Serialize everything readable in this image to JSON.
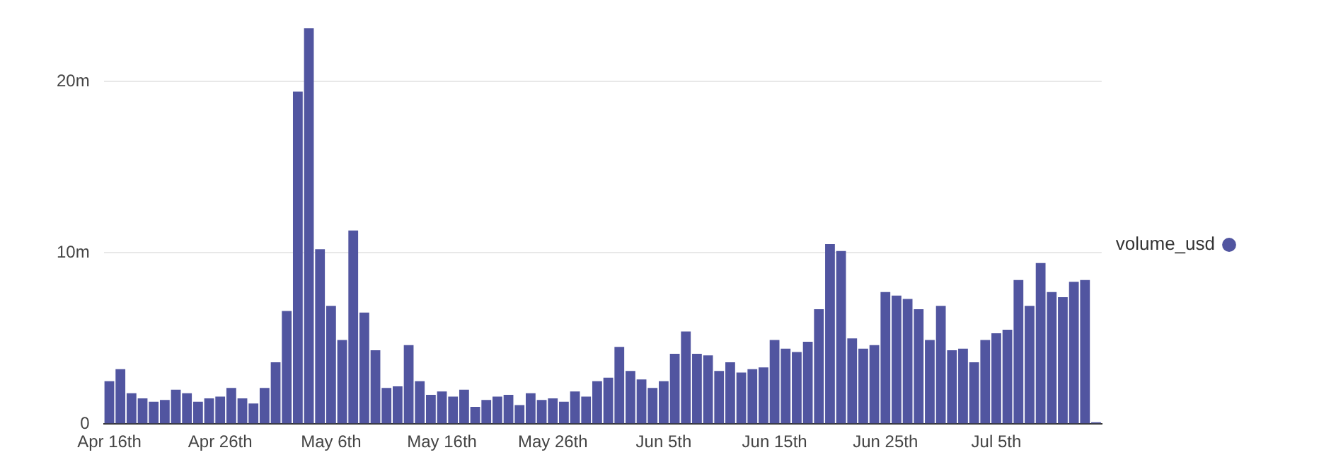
{
  "chart_data": {
    "type": "bar",
    "categories": [
      "Apr 16th",
      null,
      null,
      null,
      null,
      null,
      null,
      null,
      null,
      null,
      "Apr 26th",
      null,
      null,
      null,
      null,
      null,
      null,
      null,
      null,
      null,
      "May 6th",
      null,
      null,
      null,
      null,
      null,
      null,
      null,
      null,
      null,
      "May 16th",
      null,
      null,
      null,
      null,
      null,
      null,
      null,
      null,
      null,
      "May 26th",
      null,
      null,
      null,
      null,
      null,
      null,
      null,
      null,
      null,
      "Jun 5th",
      null,
      null,
      null,
      null,
      null,
      null,
      null,
      null,
      null,
      "Jun 15th",
      null,
      null,
      null,
      null,
      null,
      null,
      null,
      null,
      null,
      "Jun 25th",
      null,
      null,
      null,
      null,
      null,
      null,
      null,
      null,
      null,
      "Jul 5th",
      null,
      null,
      null,
      null,
      null,
      null,
      null,
      null,
      null
    ],
    "series": [
      {
        "name": "volume_usd",
        "color": "#5155a0",
        "values": [
          2.5,
          3.2,
          1.8,
          1.5,
          1.3,
          1.4,
          2.0,
          1.8,
          1.3,
          1.5,
          1.6,
          2.1,
          1.5,
          1.2,
          2.1,
          3.6,
          6.6,
          19.4,
          23.1,
          10.2,
          6.9,
          4.9,
          11.3,
          6.5,
          4.3,
          2.1,
          2.2,
          4.6,
          2.5,
          1.7,
          1.9,
          1.6,
          2.0,
          1.0,
          1.4,
          1.6,
          1.7,
          1.1,
          1.8,
          1.4,
          1.5,
          1.3,
          1.9,
          1.6,
          2.5,
          2.7,
          4.5,
          3.1,
          2.6,
          2.1,
          2.5,
          4.1,
          5.4,
          4.1,
          4.0,
          3.1,
          3.6,
          3.0,
          3.2,
          3.3,
          4.9,
          4.4,
          4.2,
          4.8,
          6.7,
          10.5,
          10.1,
          5.0,
          4.4,
          4.6,
          7.7,
          7.5,
          7.3,
          6.7,
          4.9,
          6.9,
          4.3,
          4.4,
          3.6,
          4.9,
          5.3,
          5.5,
          8.4,
          6.9,
          9.4,
          7.7,
          7.4,
          8.3,
          8.4,
          0.1
        ]
      }
    ],
    "ylim": [
      0,
      23.1
    ],
    "yticks": [
      {
        "value": 0,
        "label": "0"
      },
      {
        "value": 10,
        "label": "10m"
      },
      {
        "value": 20,
        "label": "20m"
      }
    ],
    "grid": "y",
    "legend": "right"
  }
}
